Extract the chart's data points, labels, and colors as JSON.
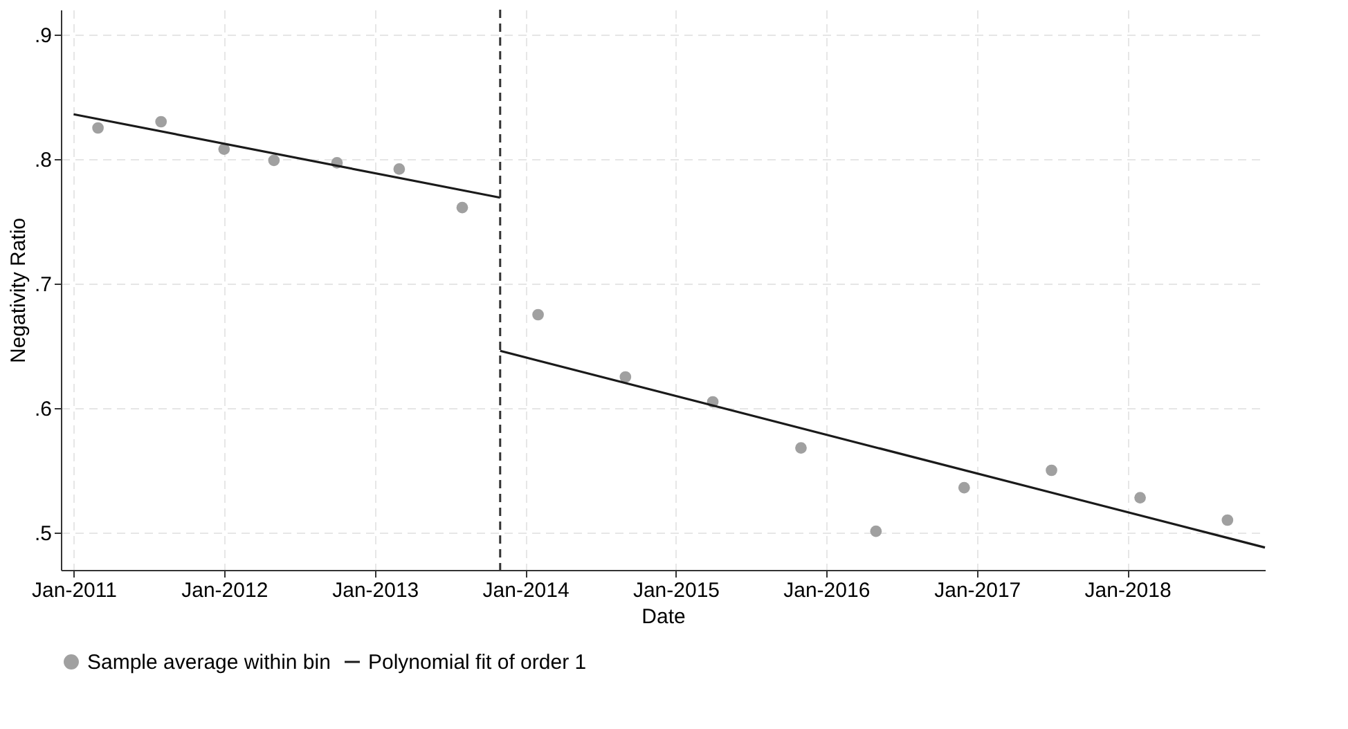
{
  "chart_data": {
    "type": "scatter",
    "xlabel": "Date",
    "ylabel": "Negativity Ratio",
    "series": [
      {
        "name": "Sample average within bin",
        "color": "#a0a0a0",
        "marker": "circle",
        "x": [
          "2011-03",
          "2011-08",
          "2012-01",
          "2012-05",
          "2012-10",
          "2013-03",
          "2013-08",
          "2014-02",
          "2014-09",
          "2015-04",
          "2015-11",
          "2016-05",
          "2016-12",
          "2017-07",
          "2018-02",
          "2018-09"
        ],
        "values": [
          0.825,
          0.83,
          0.808,
          0.799,
          0.797,
          0.792,
          0.761,
          0.675,
          0.625,
          0.605,
          0.568,
          0.501,
          0.536,
          0.55,
          0.528,
          0.51
        ]
      },
      {
        "name": "Polynomial fit of order 1",
        "type": "line",
        "color": "#1a1a1a",
        "line_style": "solid",
        "x": [
          "2011-01",
          "2013-11"
        ],
        "values": [
          0.836,
          0.769
        ]
      },
      {
        "type": "line",
        "color": "#1a1a1a",
        "line_style": "solid",
        "x": [
          "2013-11",
          "2018-12"
        ],
        "values": [
          0.646,
          0.488
        ]
      }
    ],
    "xlim": [
      "2010-12",
      "2018-12"
    ],
    "xticks": [
      {
        "value": "2011-01",
        "label": "Jan-2011"
      },
      {
        "value": "2012-01",
        "label": "Jan-2012"
      },
      {
        "value": "2013-01",
        "label": "Jan-2013"
      },
      {
        "value": "2014-01",
        "label": "Jan-2014"
      },
      {
        "value": "2015-01",
        "label": "Jan-2015"
      },
      {
        "value": "2016-01",
        "label": "Jan-2016"
      },
      {
        "value": "2017-01",
        "label": "Jan-2017"
      },
      {
        "value": "2018-01",
        "label": "Jan-2018"
      }
    ],
    "ylim": [
      0.47,
      0.92
    ],
    "yticks": [
      {
        "value": 0.5,
        "label": ".5"
      },
      {
        "value": 0.6,
        "label": ".6"
      },
      {
        "value": 0.7,
        "label": ".7"
      },
      {
        "value": 0.8,
        "label": ".8"
      },
      {
        "value": 0.9,
        "label": ".9"
      }
    ],
    "ref_lines": [
      {
        "axis": "x",
        "value": "2013-11",
        "color": "#333333",
        "line_style": "dashed"
      }
    ],
    "grid": true,
    "legend": "bottom"
  }
}
